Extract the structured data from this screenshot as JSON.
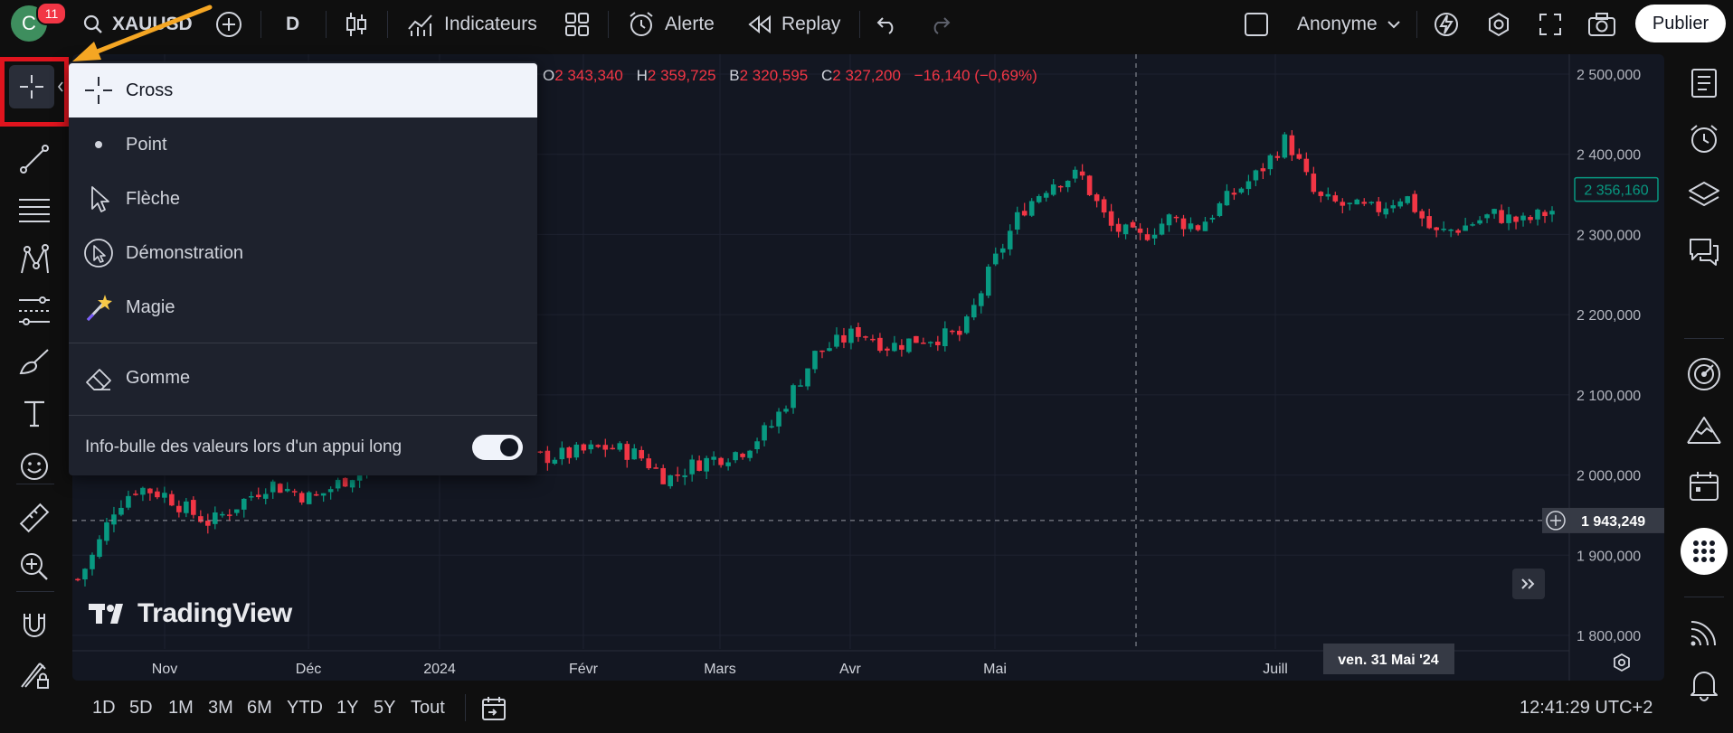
{
  "topbar": {
    "avatar_letter": "C",
    "notif_count": "11",
    "symbol": "XAUUSD",
    "interval": "D",
    "indicators": "Indicateurs",
    "alert": "Alerte",
    "replay": "Replay",
    "layout_name": "Anonyme",
    "publish": "Publier"
  },
  "menu": {
    "items": [
      {
        "label": "Cross",
        "icon": "cross-icon"
      },
      {
        "label": "Point",
        "icon": "dot-icon"
      },
      {
        "label": "Flèche",
        "icon": "arrow-cursor-icon"
      },
      {
        "label": "Démonstration",
        "icon": "demonstration-icon"
      },
      {
        "label": "Magie",
        "icon": "magic-wand-icon"
      },
      {
        "label": "Gomme",
        "icon": "eraser-icon"
      }
    ],
    "toggle_label": "Info-bulle des valeurs lors d'un appui long",
    "toggle_state": "on"
  },
  "legend": {
    "o_label": "O",
    "o_value": "2 343,340",
    "h_label": "H",
    "h_value": "2 359,725",
    "b_label": "B",
    "b_value": "2 320,595",
    "c_label": "C",
    "c_value": "2 327,200",
    "change": "−16,140 (−0,69%)"
  },
  "chart": {
    "watermark": "TradingView",
    "price_labels": [
      "2 500,000",
      "2 400,000",
      "2 300,000",
      "2 200,000",
      "2 100,000",
      "2 000,000",
      "1 900,000",
      "1 800,000"
    ],
    "x_labels": [
      "Nov",
      "Déc",
      "2024",
      "Févr",
      "Mars",
      "Avr",
      "Mai",
      "Juill"
    ],
    "last_price": "2 356,160",
    "crosshair_price": "1 943,249",
    "crosshair_date": "ven. 31 Mai '24",
    "colors": {
      "up": "#089981",
      "down": "#f23645",
      "bg": "#131722",
      "accent": "#2962ff"
    }
  },
  "chart_data": {
    "type": "candlestick",
    "ylim": [
      1800,
      2500
    ],
    "x_labels": [
      "Nov",
      "Déc",
      "2024",
      "Févr",
      "Mars",
      "Avr",
      "Mai",
      "Juill"
    ],
    "close_path": [
      [
        0,
        1870
      ],
      [
        0.012,
        1905
      ],
      [
        0.025,
        1960
      ],
      [
        0.04,
        1985
      ],
      [
        0.06,
        1975
      ],
      [
        0.075,
        1955
      ],
      [
        0.09,
        1940
      ],
      [
        0.11,
        1965
      ],
      [
        0.13,
        1990
      ],
      [
        0.16,
        1970
      ],
      [
        0.19,
        2005
      ],
      [
        0.22,
        2040
      ],
      [
        0.25,
        2015
      ],
      [
        0.28,
        2030
      ],
      [
        0.3,
        2020
      ],
      [
        0.33,
        2025
      ],
      [
        0.36,
        2035
      ],
      [
        0.38,
        2025
      ],
      [
        0.4,
        1995
      ],
      [
        0.42,
        2015
      ],
      [
        0.45,
        2030
      ],
      [
        0.47,
        2060
      ],
      [
        0.5,
        2150
      ],
      [
        0.53,
        2180
      ],
      [
        0.55,
        2160
      ],
      [
        0.57,
        2170
      ],
      [
        0.6,
        2175
      ],
      [
        0.62,
        2260
      ],
      [
        0.64,
        2330
      ],
      [
        0.66,
        2365
      ],
      [
        0.68,
        2375
      ],
      [
        0.7,
        2310
      ],
      [
        0.72,
        2295
      ],
      [
        0.74,
        2320
      ],
      [
        0.76,
        2310
      ],
      [
        0.78,
        2345
      ],
      [
        0.8,
        2375
      ],
      [
        0.82,
        2420
      ],
      [
        0.84,
        2345
      ],
      [
        0.86,
        2335
      ],
      [
        0.88,
        2330
      ],
      [
        0.9,
        2350
      ],
      [
        0.92,
        2300
      ],
      [
        0.94,
        2310
      ],
      [
        0.96,
        2325
      ],
      [
        0.98,
        2315
      ],
      [
        1,
        2330
      ]
    ],
    "legend_ohlc": {
      "open": 2343.34,
      "high": 2359.725,
      "low": 2320.595,
      "close": 2327.2
    },
    "last_price": 2356.16,
    "crosshair": {
      "price": 1943.249,
      "date": "ven. 31 Mai '24"
    }
  },
  "bottombar": {
    "timeframes": [
      "1D",
      "5D",
      "1M",
      "3M",
      "6M",
      "YTD",
      "1Y",
      "5Y",
      "Tout"
    ],
    "clock": "12:41:29 UTC+2"
  }
}
